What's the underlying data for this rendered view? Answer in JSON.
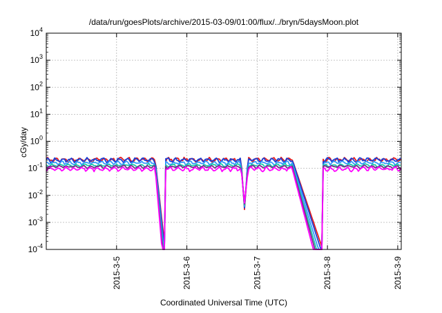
{
  "chart_data": {
    "type": "line",
    "title": "/data/run/goesPlots/archive/2015-03-09/01:00/flux/../bryn/5daysMoon.plot",
    "xlabel": "Coordinated Universal Time (UTC)",
    "ylabel": "cGy/day",
    "yscale": "log",
    "ylim": [
      0.0001,
      10000
    ],
    "xlim": [
      4.0,
      9.05
    ],
    "x_unit": "days (March 2015)",
    "grid": true,
    "legend": "none",
    "y_ticks": [
      {
        "base": "10",
        "exp": "4",
        "value": 10000
      },
      {
        "base": "10",
        "exp": "3",
        "value": 1000
      },
      {
        "base": "10",
        "exp": "2",
        "value": 100
      },
      {
        "base": "10",
        "exp": "1",
        "value": 10
      },
      {
        "base": "10",
        "exp": "0",
        "value": 1
      },
      {
        "base": "10",
        "exp": "-1",
        "value": 0.1
      },
      {
        "base": "10",
        "exp": "-2",
        "value": 0.01
      },
      {
        "base": "10",
        "exp": "-3",
        "value": 0.001
      },
      {
        "base": "10",
        "exp": "-4",
        "value": 0.0001
      }
    ],
    "x_ticks": [
      {
        "label": "2015-3-5",
        "value": 5.0
      },
      {
        "label": "2015-3-6",
        "value": 6.0
      },
      {
        "label": "2015-3-7",
        "value": 7.0
      },
      {
        "label": "2015-3-8",
        "value": 8.0
      },
      {
        "label": "2015-3-9",
        "value": 9.0
      }
    ],
    "gaps": [
      [
        5.55,
        5.69
      ],
      [
        7.5,
        7.93
      ]
    ],
    "dip": {
      "x": 6.82,
      "min": 0.003
    },
    "series": [
      {
        "color": "#e41a1c",
        "level": 0.21,
        "noise": 0.13
      },
      {
        "color": "#1a3fd6",
        "level": 0.205,
        "noise": 0.13
      },
      {
        "color": "#3399ff",
        "level": 0.16,
        "noise": 0.1
      },
      {
        "color": "#19c9a8",
        "level": 0.13,
        "noise": 0.09
      },
      {
        "color": "#7d2a8c",
        "level": 0.115,
        "noise": 0.08
      },
      {
        "color": "#ff00ff",
        "level": 0.095,
        "noise": 0.12
      }
    ]
  }
}
